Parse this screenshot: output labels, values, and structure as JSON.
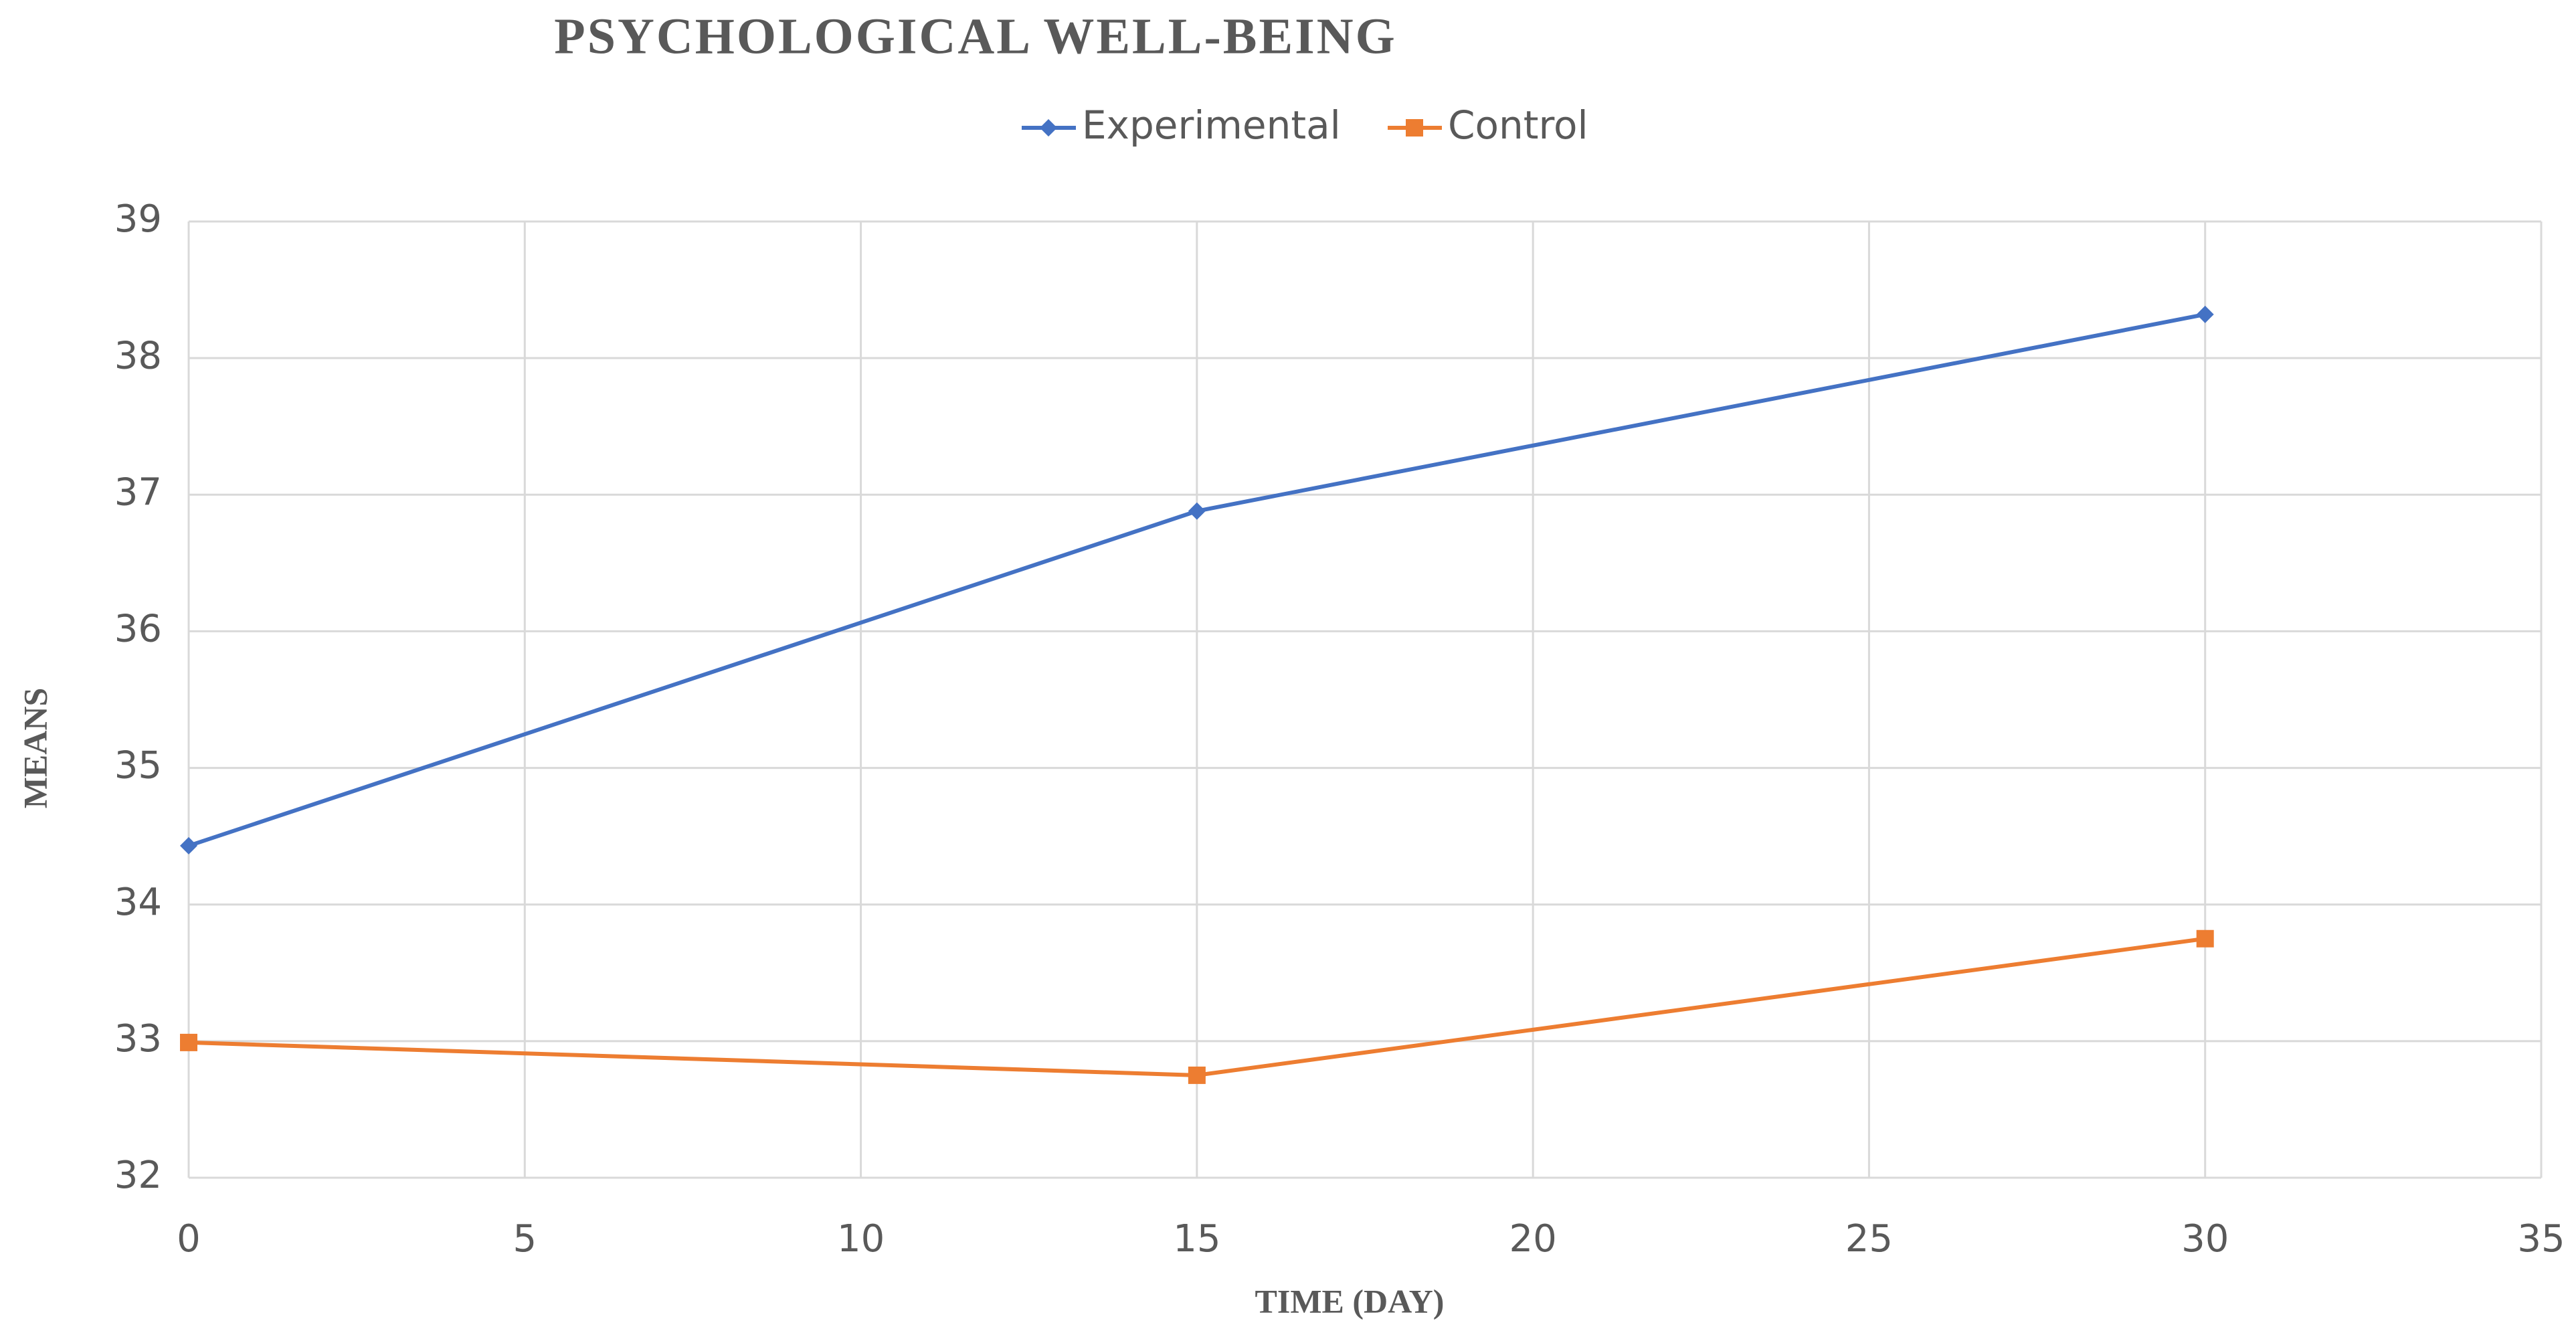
{
  "chart_data": {
    "type": "line",
    "title": "PSYCHOLOGICAL WELL-BEING",
    "x_label": "TIME (DAY)",
    "y_label": "MEANS",
    "x": [
      0,
      15,
      30
    ],
    "series": [
      {
        "name": "Experimental",
        "color": "#4472c4",
        "marker": "diamond",
        "values": [
          34.43,
          36.88,
          38.32
        ]
      },
      {
        "name": "Control",
        "color": "#ed7d31",
        "marker": "square",
        "values": [
          32.99,
          32.75,
          33.75
        ]
      }
    ],
    "xlim": [
      0,
      35
    ],
    "xticks": [
      0,
      5,
      10,
      15,
      20,
      25,
      30,
      35
    ],
    "ylim": [
      32,
      39
    ],
    "yticks": [
      32,
      33,
      34,
      35,
      36,
      37,
      38,
      39
    ],
    "grid": true,
    "legend": "top"
  }
}
